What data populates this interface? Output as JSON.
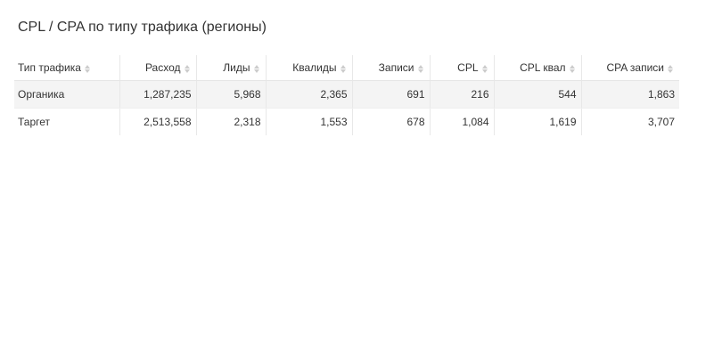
{
  "title": "CPL / CPA по типу трафика (регионы)",
  "table": {
    "columns": [
      "Тип трафика",
      "Расход",
      "Лиды",
      "Квалиды",
      "Записи",
      "CPL",
      "CPL квал",
      "CPA записи"
    ],
    "rows": [
      [
        "Органика",
        "1,287,235",
        "5,968",
        "2,365",
        "691",
        "216",
        "544",
        "1,863"
      ],
      [
        "Таргет",
        "2,513,558",
        "2,318",
        "1,553",
        "678",
        "1,084",
        "1,619",
        "3,707"
      ]
    ]
  },
  "icons": {
    "sort": "sort-arrows-icon"
  },
  "colors": {
    "row_shade": "#f4f4f4",
    "sort_icon": "#cccccc"
  }
}
